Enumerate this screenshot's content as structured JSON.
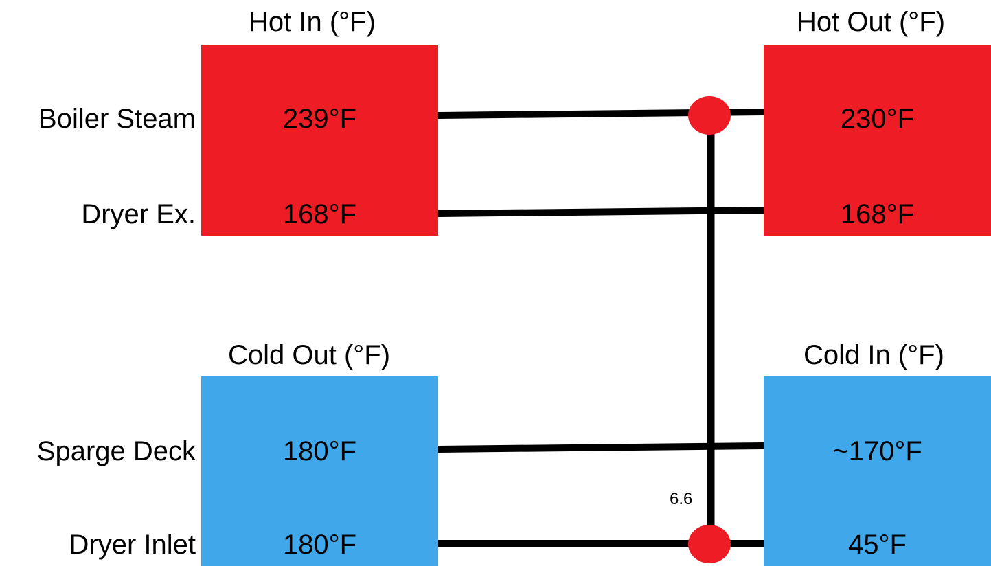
{
  "colors": {
    "hot": "#ee1c25",
    "cold": "#3fa7ea",
    "line": "#000000",
    "node": "#ee1c25"
  },
  "headers": {
    "hot_in": "Hot In (°F)",
    "hot_out": "Hot Out (°F)",
    "cold_out": "Cold Out (°F)",
    "cold_in": "Cold In (°F)"
  },
  "streams": {
    "boiler_steam": {
      "label": "Boiler Steam",
      "in": "239°F",
      "out": "230°F"
    },
    "dryer_ex": {
      "label": "Dryer Ex.",
      "in": "168°F",
      "out": "168°F"
    },
    "sparge_deck": {
      "label": "Sparge Deck",
      "out": "180°F",
      "in": "~170°F"
    },
    "dryer_inlet": {
      "label": "Dryer Inlet",
      "out": "180°F",
      "in": "45°F"
    }
  },
  "exchanger": {
    "duty_label": "6.6"
  }
}
